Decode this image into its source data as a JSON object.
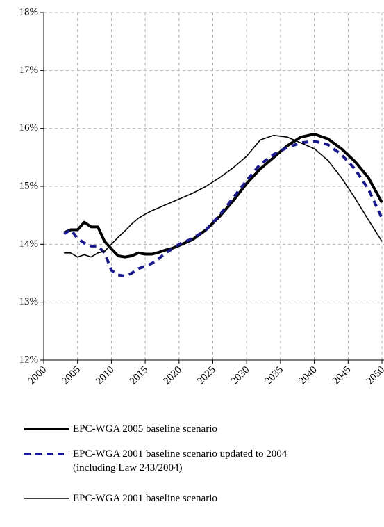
{
  "chart_data": {
    "type": "line",
    "x": [
      2003,
      2004,
      2005,
      2006,
      2007,
      2008,
      2009,
      2010,
      2011,
      2012,
      2013,
      2014,
      2015,
      2016,
      2017,
      2018,
      2019,
      2020,
      2022,
      2024,
      2026,
      2028,
      2030,
      2032,
      2034,
      2036,
      2038,
      2040,
      2042,
      2044,
      2046,
      2048,
      2050
    ],
    "series": [
      {
        "name": "EPC-WGA 2005 baseline scenario",
        "color": "#000000",
        "style": "thick",
        "values": [
          14.2,
          14.25,
          14.25,
          14.38,
          14.3,
          14.3,
          14.05,
          13.92,
          13.8,
          13.78,
          13.8,
          13.85,
          13.83,
          13.83,
          13.86,
          13.9,
          13.93,
          13.98,
          14.08,
          14.25,
          14.48,
          14.75,
          15.05,
          15.3,
          15.5,
          15.7,
          15.85,
          15.9,
          15.82,
          15.65,
          15.43,
          15.15,
          14.72
        ]
      },
      {
        "name": "EPC-WGA 2001 baseline scenario updated to 2004\n(including Law 243/2004)",
        "color": "#1a1a8c",
        "style": "dashed",
        "values": [
          14.18,
          14.25,
          14.1,
          14.02,
          13.97,
          13.97,
          13.85,
          13.55,
          13.47,
          13.45,
          13.5,
          13.58,
          13.62,
          13.67,
          13.75,
          13.85,
          13.92,
          14.0,
          14.1,
          14.25,
          14.5,
          14.8,
          15.1,
          15.38,
          15.55,
          15.67,
          15.75,
          15.78,
          15.72,
          15.55,
          15.3,
          14.95,
          14.45
        ]
      },
      {
        "name": "EPC-WGA 2001 baseline scenario",
        "color": "#000000",
        "style": "thin",
        "values": [
          13.85,
          13.85,
          13.78,
          13.82,
          13.78,
          13.85,
          13.88,
          14.0,
          14.12,
          14.23,
          14.35,
          14.45,
          14.52,
          14.58,
          14.63,
          14.68,
          14.73,
          14.78,
          14.88,
          15.0,
          15.15,
          15.32,
          15.52,
          15.8,
          15.88,
          15.85,
          15.75,
          15.65,
          15.45,
          15.15,
          14.8,
          14.42,
          14.05
        ]
      }
    ],
    "xlim": [
      2000,
      2050
    ],
    "xticks": [
      2000,
      2005,
      2010,
      2015,
      2020,
      2025,
      2030,
      2035,
      2040,
      2045,
      2050
    ],
    "ylim": [
      12,
      18
    ],
    "yticks": [
      {
        "value": 12,
        "label": "12%"
      },
      {
        "value": 13,
        "label": "13%"
      },
      {
        "value": 14,
        "label": "14%"
      },
      {
        "value": 15,
        "label": "15%"
      },
      {
        "value": 16,
        "label": "16%"
      },
      {
        "value": 17,
        "label": "17%"
      },
      {
        "value": 18,
        "label": "18%"
      }
    ],
    "grid": true,
    "legend": "bottom"
  }
}
